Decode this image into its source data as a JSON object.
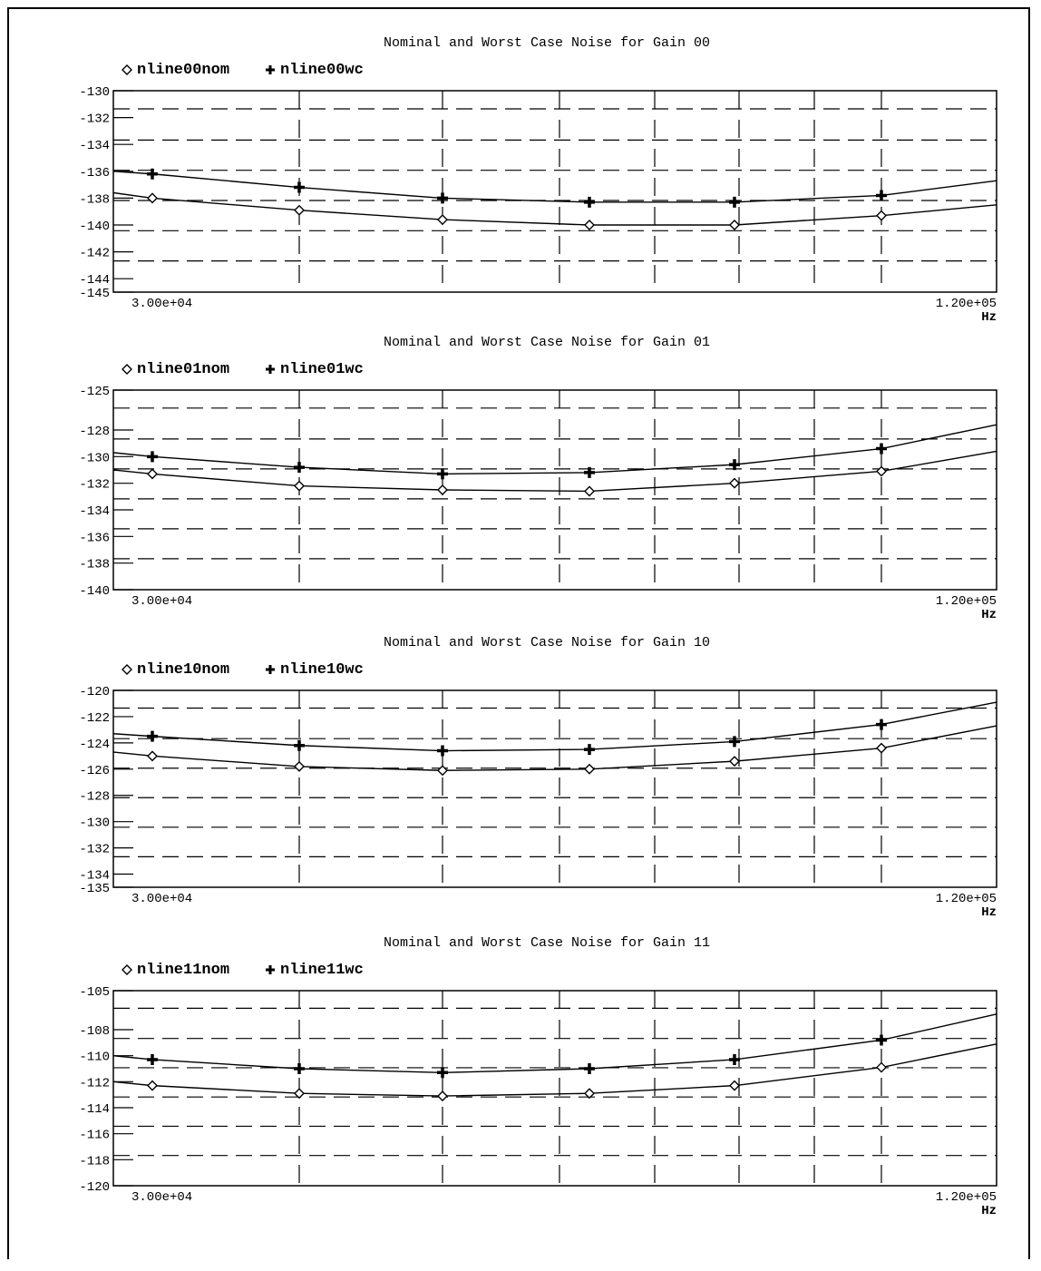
{
  "colors": {
    "ink": "#000000",
    "background": "#ffffff"
  },
  "chart_data": [
    {
      "type": "line",
      "title": "Nominal and Worst Case Noise for Gain 00",
      "xlabel": "Hz",
      "x_tick_labels": [
        "3.00e+04",
        "1.20e+05"
      ],
      "xlim": [
        30000,
        125000
      ],
      "ylim": [
        -145,
        -130
      ],
      "y_ticks": [
        -130,
        -132,
        -134,
        -136,
        -138,
        -140,
        -142,
        -144,
        -145
      ],
      "legend_position": "top-left",
      "grid": true,
      "x": [
        30000,
        46000,
        62000,
        76000,
        90000,
        113000
      ],
      "series": [
        {
          "name": "nline00nom",
          "marker": "diamond-icon",
          "values": [
            -138.0,
            -138.9,
            -139.6,
            -140.0,
            -140.0,
            -139.3
          ],
          "line_ends": [
            -137.6,
            -138.5
          ]
        },
        {
          "name": "nline00wc",
          "marker": "plus-icon",
          "values": [
            -136.2,
            -137.2,
            -138.0,
            -138.3,
            -138.3,
            -137.8
          ],
          "line_ends": [
            -136.0,
            -136.7
          ]
        }
      ]
    },
    {
      "type": "line",
      "title": "Nominal and Worst Case Noise for Gain 01",
      "xlabel": "Hz",
      "x_tick_labels": [
        "3.00e+04",
        "1.20e+05"
      ],
      "xlim": [
        30000,
        125000
      ],
      "ylim": [
        -140,
        -125
      ],
      "y_ticks": [
        -125,
        -128,
        -130,
        -132,
        -134,
        -136,
        -138,
        -140
      ],
      "legend_position": "top-left",
      "grid": true,
      "x": [
        30000,
        46000,
        62000,
        76000,
        90000,
        113000
      ],
      "series": [
        {
          "name": "nline01nom",
          "marker": "diamond-icon",
          "values": [
            -131.3,
            -132.2,
            -132.5,
            -132.6,
            -132.0,
            -131.1
          ],
          "line_ends": [
            -131.0,
            -129.6
          ]
        },
        {
          "name": "nline01wc",
          "marker": "plus-icon",
          "values": [
            -130.0,
            -130.8,
            -131.3,
            -131.2,
            -130.6,
            -129.4
          ],
          "line_ends": [
            -129.7,
            -127.6
          ]
        }
      ]
    },
    {
      "type": "line",
      "title": "Nominal and Worst Case Noise for Gain 10",
      "xlabel": "Hz",
      "x_tick_labels": [
        "3.00e+04",
        "1.20e+05"
      ],
      "xlim": [
        30000,
        125000
      ],
      "ylim": [
        -135,
        -120
      ],
      "y_ticks": [
        -120,
        -122,
        -124,
        -126,
        -128,
        -130,
        -132,
        -134,
        -135
      ],
      "legend_position": "top-left",
      "grid": true,
      "x": [
        30000,
        46000,
        62000,
        76000,
        90000,
        113000
      ],
      "series": [
        {
          "name": "nline10nom",
          "marker": "diamond-icon",
          "values": [
            -125.0,
            -125.8,
            -126.1,
            -126.0,
            -125.4,
            -124.4
          ],
          "line_ends": [
            -124.7,
            -122.7
          ]
        },
        {
          "name": "nline10wc",
          "marker": "plus-icon",
          "values": [
            -123.5,
            -124.2,
            -124.6,
            -124.5,
            -123.9,
            -122.6
          ],
          "line_ends": [
            -123.3,
            -120.9
          ]
        }
      ]
    },
    {
      "type": "line",
      "title": "Nominal and Worst Case Noise for Gain 11",
      "xlabel": "Hz",
      "x_tick_labels": [
        "3.00e+04",
        "1.20e+05"
      ],
      "xlim": [
        30000,
        125000
      ],
      "ylim": [
        -120,
        -105
      ],
      "y_ticks": [
        -105,
        -108,
        -110,
        -112,
        -114,
        -116,
        -118,
        -120
      ],
      "legend_position": "top-left",
      "grid": true,
      "x": [
        30000,
        46000,
        62000,
        76000,
        90000,
        113000
      ],
      "series": [
        {
          "name": "nline11nom",
          "marker": "diamond-icon",
          "values": [
            -112.3,
            -112.9,
            -113.1,
            -112.9,
            -112.3,
            -110.9
          ],
          "line_ends": [
            -112.0,
            -109.1
          ]
        },
        {
          "name": "nline11wc",
          "marker": "plus-icon",
          "values": [
            -110.3,
            -111.0,
            -111.3,
            -111.0,
            -110.3,
            -108.8
          ],
          "line_ends": [
            -110.0,
            -106.8
          ]
        }
      ]
    }
  ]
}
